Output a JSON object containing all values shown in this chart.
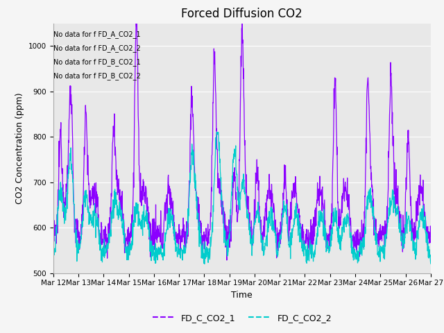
{
  "title": "Forced Diffusion CO2",
  "xlabel": "Time",
  "ylabel": "CO2 Concentration (ppm)",
  "ylim": [
    500,
    1050
  ],
  "color_1": "#8B00FF",
  "color_2": "#00CCCC",
  "label_1": "FD_C_CO2_1",
  "label_2": "FD_C_CO2_2",
  "no_data_texts": [
    "No data for f FD_A_CO2_1",
    "No data for f FD_A_CO2_2",
    "No data for f FD_B_CO2_1",
    "No data for f FD_B_CO2_2"
  ],
  "plot_bg": "#e8e8e8",
  "fig_bg": "#f5f5f5",
  "grid_color": "#ffffff",
  "title_fontsize": 12,
  "axis_fontsize": 9,
  "tick_fontsize": 7.5
}
